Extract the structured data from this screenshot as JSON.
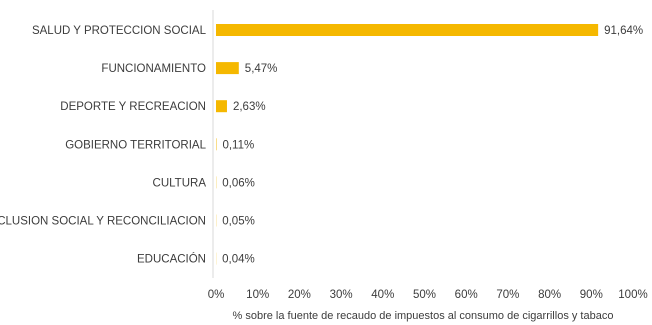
{
  "chart_data": {
    "type": "bar",
    "orientation": "horizontal",
    "categories": [
      "SALUD Y PROTECCION SOCIAL",
      "FUNCIONAMIENTO",
      "DEPORTE Y RECREACION",
      "GOBIERNO TERRITORIAL",
      "CULTURA",
      "INCLUSION SOCIAL Y RECONCILIACION",
      "EDUCACIÓN"
    ],
    "values": [
      91.64,
      5.47,
      2.63,
      0.11,
      0.06,
      0.05,
      0.04
    ],
    "value_labels": [
      "91,64%",
      "5,47%",
      "2,63%",
      "0,11%",
      "0,06%",
      "0,05%",
      "0,04%"
    ],
    "xlim": [
      0,
      100
    ],
    "xticks": [
      0,
      10,
      20,
      30,
      40,
      50,
      60,
      70,
      80,
      90,
      100
    ],
    "xtick_labels": [
      "0%",
      "10%",
      "20%",
      "30%",
      "40%",
      "50%",
      "60%",
      "70%",
      "80%",
      "90%",
      "100%"
    ],
    "xlabel": "% sobre la fuente de recaudo de impuestos al consumo de cigarrillos y tabaco",
    "ylabel": "",
    "title": "",
    "grid": false,
    "legend": "none",
    "bar_color": "#F5B800"
  }
}
